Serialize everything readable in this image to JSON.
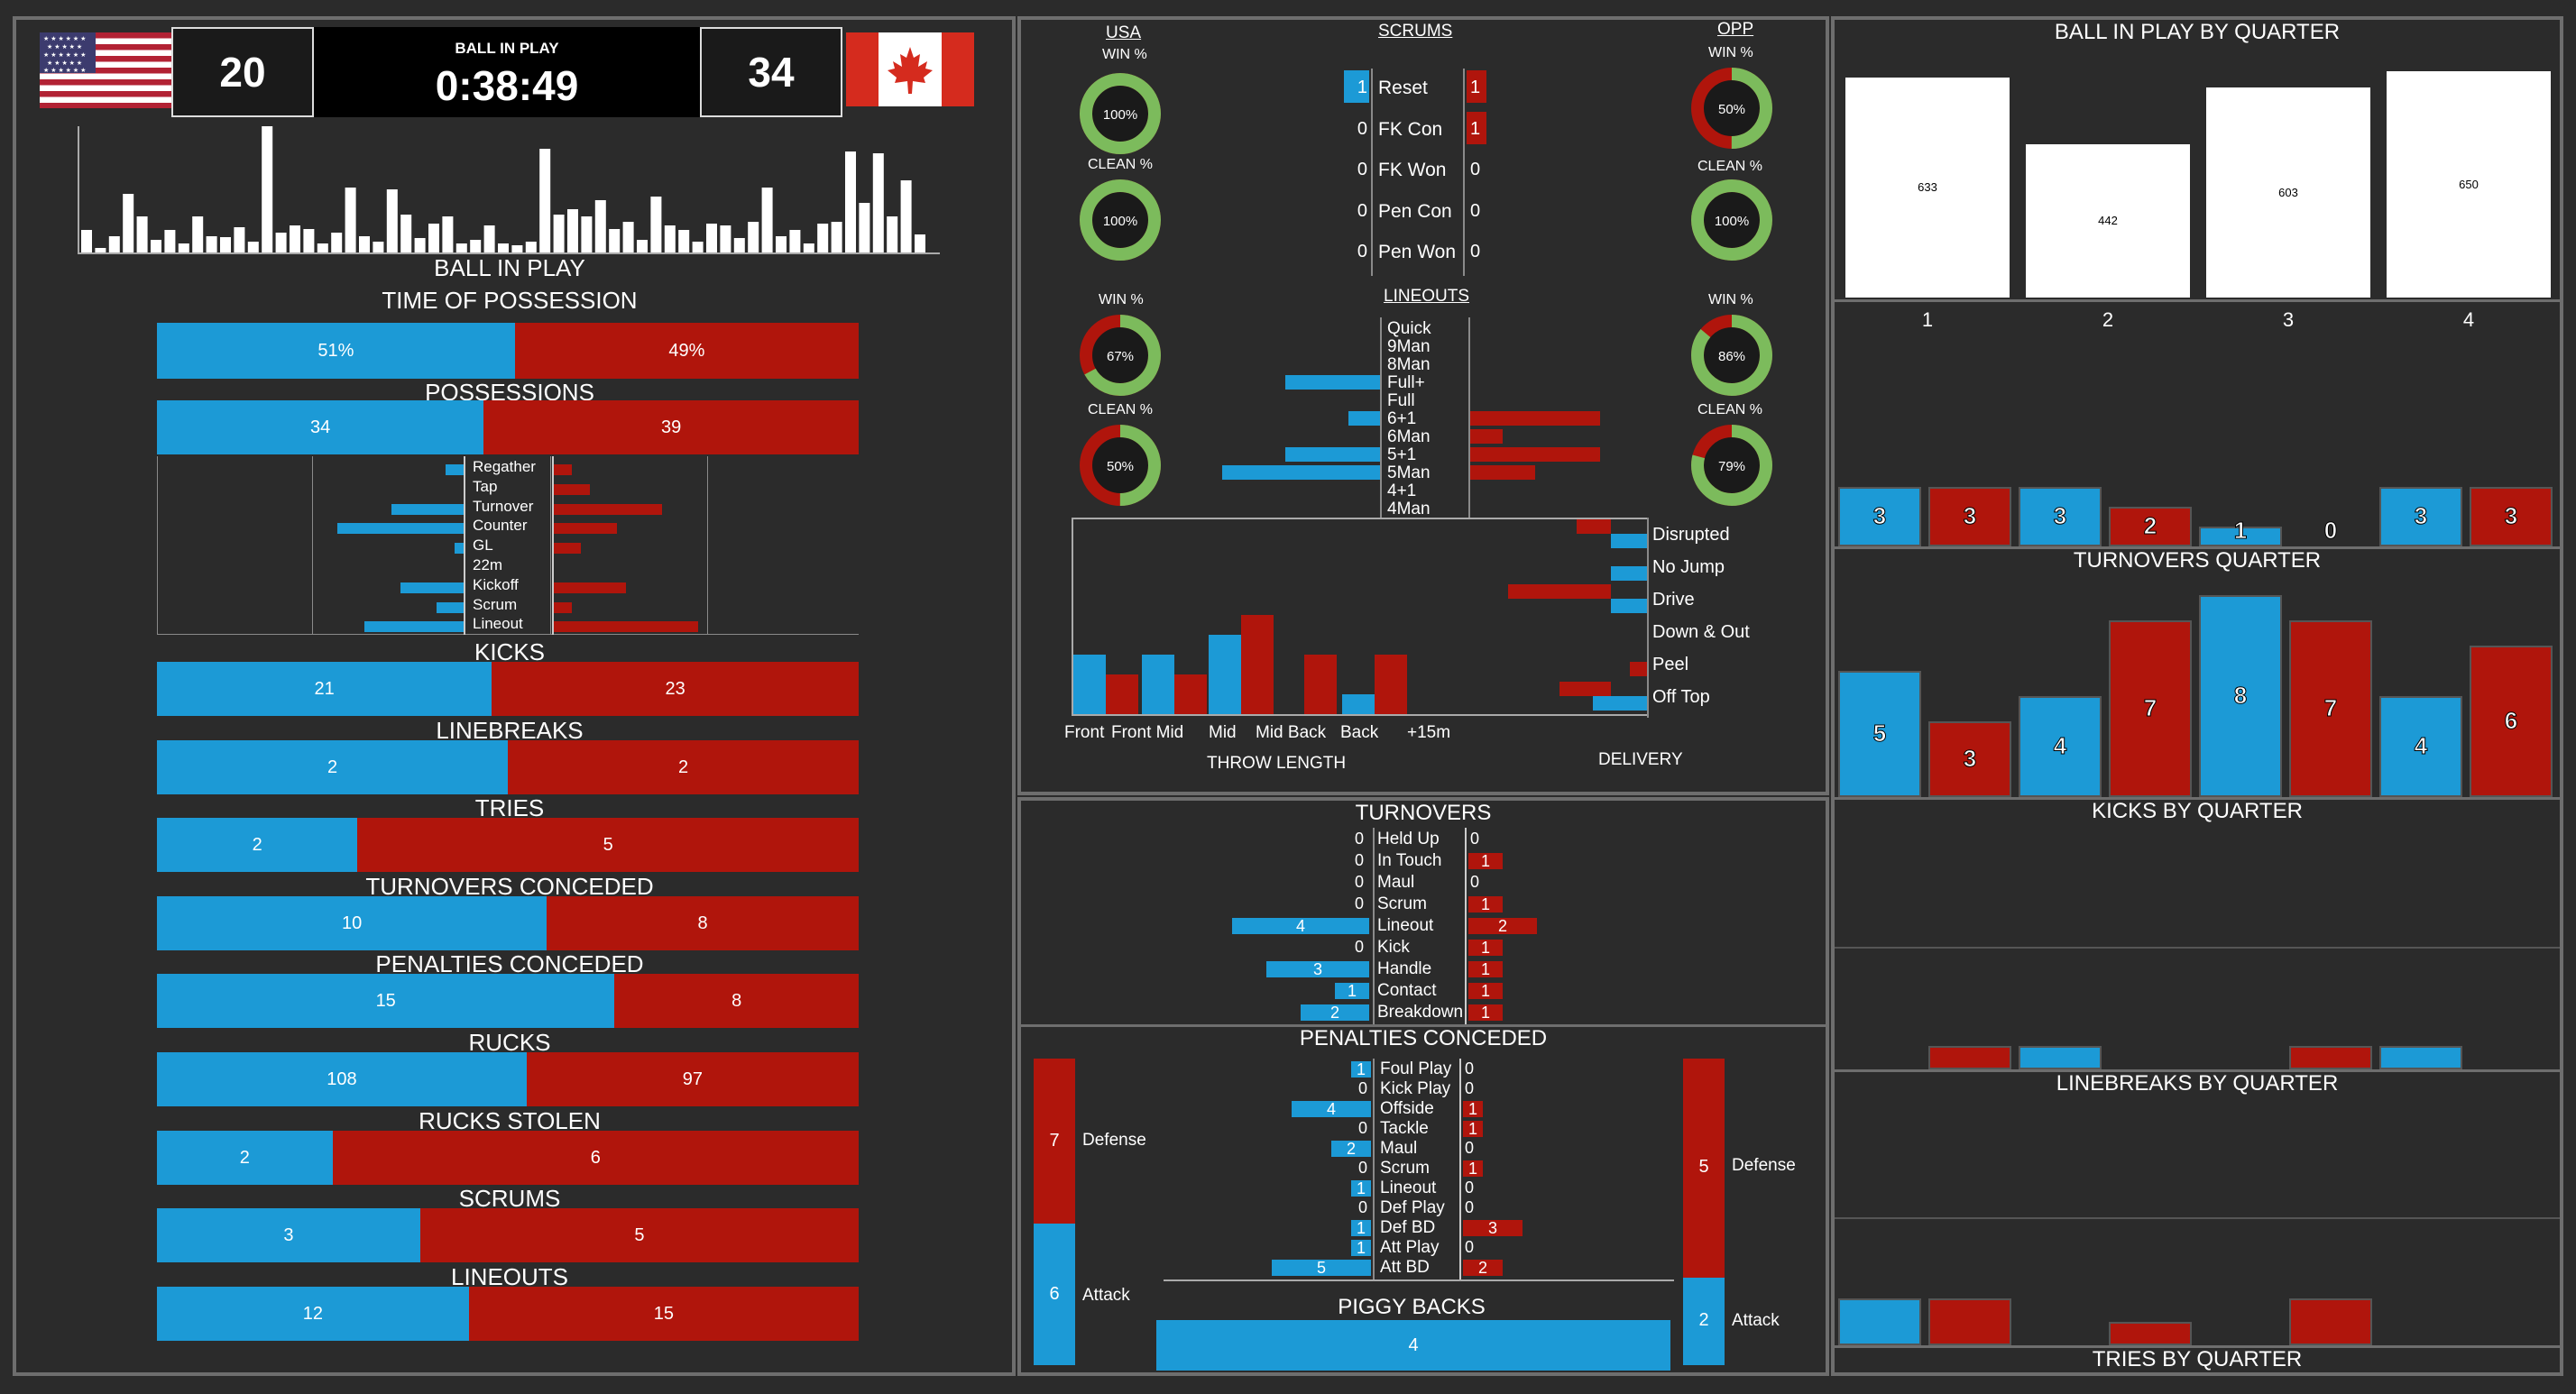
{
  "scoreboard": {
    "home_score": "20",
    "away_score": "34",
    "clock_label": "BALL IN PLAY",
    "clock": "0:38:49",
    "home_team": "USA",
    "away_team": "OPP"
  },
  "left": {
    "ball_in_play_label": "BALL IN PLAY",
    "ball_in_play_bars": [
      25,
      5,
      18,
      65,
      40,
      14,
      25,
      10,
      40,
      18,
      17,
      28,
      12,
      140,
      22,
      30,
      26,
      10,
      22,
      72,
      18,
      12,
      70,
      42,
      16,
      32,
      40,
      10,
      14,
      30,
      10,
      8,
      12,
      115,
      42,
      48,
      40,
      58,
      26,
      34,
      14,
      62,
      30,
      25,
      12,
      32,
      30,
      16,
      34,
      72,
      18,
      25,
      10,
      32,
      34,
      112,
      55,
      110,
      40,
      80,
      20
    ],
    "time_of_possession": {
      "label": "TIME OF POSSESSION",
      "home": "51%",
      "away": "49%",
      "home_val": 51,
      "away_val": 49
    },
    "possessions": {
      "label": "POSSESSIONS",
      "home": "34",
      "away": "39",
      "home_val": 34,
      "away_val": 39
    },
    "possession_types": [
      {
        "label": "Regather",
        "home": 2,
        "away": 2
      },
      {
        "label": "Tap",
        "home": 0,
        "away": 4
      },
      {
        "label": "Turnover",
        "home": 8,
        "away": 12
      },
      {
        "label": "Counter",
        "home": 14,
        "away": 7
      },
      {
        "label": "GL",
        "home": 1,
        "away": 3
      },
      {
        "label": "22m",
        "home": 0,
        "away": 0
      },
      {
        "label": "Kickoff",
        "home": 7,
        "away": 8
      },
      {
        "label": "Scrum",
        "home": 3,
        "away": 2
      },
      {
        "label": "Lineout",
        "home": 11,
        "away": 16
      }
    ],
    "stats": [
      {
        "key": "kicks",
        "label": "KICKS",
        "home": "21",
        "away": "23",
        "home_val": 21,
        "away_val": 23
      },
      {
        "key": "linebreaks",
        "label": "LINEBREAKS",
        "home": "2",
        "away": "2",
        "home_val": 2,
        "away_val": 2
      },
      {
        "key": "tries",
        "label": "TRIES",
        "home": "2",
        "away": "5",
        "home_val": 2,
        "away_val": 5
      },
      {
        "key": "turnovers-conceded",
        "label": "TURNOVERS CONCEDED",
        "home": "10",
        "away": "8",
        "home_val": 10,
        "away_val": 8
      },
      {
        "key": "penalties-conceded",
        "label": "PENALTIES CONCEDED",
        "home": "15",
        "away": "8",
        "home_val": 15,
        "away_val": 8
      },
      {
        "key": "rucks",
        "label": "RUCKS",
        "home": "108",
        "away": "97",
        "home_val": 108,
        "away_val": 97
      },
      {
        "key": "rucks-stolen",
        "label": "RUCKS STOLEN",
        "home": "2",
        "away": "6",
        "home_val": 2,
        "away_val": 6
      },
      {
        "key": "scrums",
        "label": "SCRUMS",
        "home": "3",
        "away": "5",
        "home_val": 3,
        "away_val": 5
      },
      {
        "key": "lineouts",
        "label": "LINEOUTS",
        "home": "12",
        "away": "15",
        "home_val": 12,
        "away_val": 15
      }
    ]
  },
  "set_piece": {
    "usa_label": "USA",
    "opp_label": "OPP",
    "scrums_label": "SCRUMS",
    "lineouts_label": "LINEOUTS",
    "win_pct_label": "WIN %",
    "clean_pct_label": "CLEAN %",
    "scrum_usa_win": {
      "text": "100%",
      "value": 100
    },
    "scrum_usa_clean": {
      "text": "100%",
      "value": 100
    },
    "scrum_opp_win": {
      "text": "50%",
      "value": 50
    },
    "scrum_opp_clean": {
      "text": "100%",
      "value": 100
    },
    "lineout_usa_win": {
      "text": "67%",
      "value": 67
    },
    "lineout_usa_clean": {
      "text": "50%",
      "value": 50
    },
    "lineout_opp_win": {
      "text": "86%",
      "value": 86
    },
    "lineout_opp_clean": {
      "text": "79%",
      "value": 79
    },
    "scrum_rows": [
      {
        "label": "Reset",
        "home": "1",
        "away": "1"
      },
      {
        "label": "FK Con",
        "home": "0",
        "away": "1"
      },
      {
        "label": "FK Won",
        "home": "0",
        "away": "0"
      },
      {
        "label": "Pen Con",
        "home": "0",
        "away": "0"
      },
      {
        "label": "Pen Won",
        "home": "0",
        "away": "0"
      }
    ],
    "lineout_types": [
      {
        "label": "Quick",
        "home": 0,
        "away": 0
      },
      {
        "label": "9Man",
        "home": 0,
        "away": 0
      },
      {
        "label": "8Man",
        "home": 0,
        "away": 0
      },
      {
        "label": "Full+",
        "home": 3,
        "away": 0
      },
      {
        "label": "Full",
        "home": 0,
        "away": 0
      },
      {
        "label": "6+1",
        "home": 1,
        "away": 4
      },
      {
        "label": "6Man",
        "home": 0,
        "away": 1
      },
      {
        "label": "5+1",
        "home": 3,
        "away": 4
      },
      {
        "label": "5Man",
        "home": 5,
        "away": 2
      },
      {
        "label": "4+1",
        "home": 0,
        "away": 0
      },
      {
        "label": "4Man",
        "home": 0,
        "away": 0
      }
    ],
    "throw_length_label": "THROW LENGTH",
    "throw_length": [
      {
        "label": "Front",
        "home": 3,
        "away": 2
      },
      {
        "label": "Front Mid",
        "home": 3,
        "away": 2
      },
      {
        "label": "Mid",
        "home": 4,
        "away": 5
      },
      {
        "label": "Mid Back",
        "home": 0,
        "away": 3
      },
      {
        "label": "Back",
        "home": 1,
        "away": 3
      },
      {
        "label": "+15m",
        "home": 0,
        "away": 0
      }
    ],
    "delivery_label": "DELIVERY",
    "delivery": [
      {
        "label": "Disrupted",
        "home": 1,
        "away": 1
      },
      {
        "label": "No Jump",
        "home": 1,
        "away": 0
      },
      {
        "label": "Drive",
        "home": 1,
        "away": 3
      },
      {
        "label": "Down & Out",
        "home": 0,
        "away": 0
      },
      {
        "label": "Peel",
        "home": 0,
        "away": 0.5
      },
      {
        "label": "Off Top",
        "home": 1.5,
        "away": 1.5
      }
    ]
  },
  "turnovers": {
    "label": "TURNOVERS",
    "rows": [
      {
        "label": "Held Up",
        "home": "0",
        "away": "0",
        "hv": 0,
        "av": 0
      },
      {
        "label": "In Touch",
        "home": "0",
        "away": "1",
        "hv": 0,
        "av": 1
      },
      {
        "label": "Maul",
        "home": "0",
        "away": "0",
        "hv": 0,
        "av": 0
      },
      {
        "label": "Scrum",
        "home": "0",
        "away": "1",
        "hv": 0,
        "av": 1
      },
      {
        "label": "Lineout",
        "home": "4",
        "away": "2",
        "hv": 4,
        "av": 2
      },
      {
        "label": "Kick",
        "home": "0",
        "away": "1",
        "hv": 0,
        "av": 1
      },
      {
        "label": "Handle",
        "home": "3",
        "away": "1",
        "hv": 3,
        "av": 1
      },
      {
        "label": "Contact",
        "home": "1",
        "away": "1",
        "hv": 1,
        "av": 1
      },
      {
        "label": "Breakdown",
        "home": "2",
        "away": "1",
        "hv": 2,
        "av": 1
      }
    ]
  },
  "penalties": {
    "label": "PENALTIES CONCEDED",
    "home_defense": {
      "label": "Defense",
      "value": "7",
      "val": 7
    },
    "home_attack": {
      "label": "Attack",
      "value": "6",
      "val": 6
    },
    "away_defense": {
      "label": "Defense",
      "value": "5",
      "val": 5
    },
    "away_attack": {
      "label": "Attack",
      "value": "2",
      "val": 2
    },
    "rows": [
      {
        "label": "Foul Play",
        "home": "1",
        "away": "0",
        "hv": 1,
        "av": 0
      },
      {
        "label": "Kick Play",
        "home": "0",
        "away": "0",
        "hv": 0,
        "av": 0
      },
      {
        "label": "Offside",
        "home": "4",
        "away": "1",
        "hv": 4,
        "av": 1
      },
      {
        "label": "Tackle",
        "home": "0",
        "away": "1",
        "hv": 0,
        "av": 1
      },
      {
        "label": "Maul",
        "home": "2",
        "away": "0",
        "hv": 2,
        "av": 0
      },
      {
        "label": "Scrum",
        "home": "0",
        "away": "1",
        "hv": 0,
        "av": 1
      },
      {
        "label": "Lineout",
        "home": "1",
        "away": "0",
        "hv": 1,
        "av": 0
      },
      {
        "label": "Def Play",
        "home": "0",
        "away": "0",
        "hv": 0,
        "av": 0
      },
      {
        "label": "Def BD",
        "home": "1",
        "away": "3",
        "hv": 1,
        "av": 3
      },
      {
        "label": "Att Play",
        "home": "1",
        "away": "0",
        "hv": 1,
        "av": 0
      },
      {
        "label": "Att BD",
        "home": "5",
        "away": "2",
        "hv": 5,
        "av": 2
      }
    ],
    "piggy_backs_label": "PIGGY BACKS",
    "piggy_backs": "4"
  },
  "quarters": {
    "ball_in_play_title": "BALL IN PLAY BY QUARTER",
    "ball_in_play": [
      {
        "q": "1",
        "value": "633",
        "val": 633
      },
      {
        "q": "2",
        "value": "442",
        "val": 442
      },
      {
        "q": "3",
        "value": "603",
        "val": 603
      },
      {
        "q": "4",
        "value": "650",
        "val": 650
      }
    ],
    "turnovers_title": "TURNOVERS QUARTER",
    "turnovers": [
      {
        "home": "3",
        "away": "3",
        "hv": 3,
        "av": 3
      },
      {
        "home": "3",
        "away": "2",
        "hv": 3,
        "av": 2
      },
      {
        "home": "1",
        "away": "0",
        "hv": 1,
        "av": 0
      },
      {
        "home": "3",
        "away": "3",
        "hv": 3,
        "av": 3
      }
    ],
    "kicks_title": "KICKS BY QUARTER",
    "kicks": [
      {
        "home": "5",
        "away": "3",
        "hv": 5,
        "av": 3
      },
      {
        "home": "4",
        "away": "7",
        "hv": 4,
        "av": 7
      },
      {
        "home": "8",
        "away": "7",
        "hv": 8,
        "av": 7
      },
      {
        "home": "4",
        "away": "6",
        "hv": 4,
        "av": 6
      }
    ],
    "linebreaks_title": "LINEBREAKS BY QUARTER",
    "linebreaks": [
      {
        "hv": 0,
        "av": 1
      },
      {
        "hv": 1,
        "av": 0
      },
      {
        "hv": 0,
        "av": 1
      },
      {
        "hv": 1,
        "av": 0
      }
    ],
    "tries_title": "TRIES BY QUARTER",
    "tries": [
      {
        "hv": 1,
        "av": 1
      },
      {
        "hv": 0,
        "av": 0.5
      },
      {
        "hv": 0,
        "av": 1
      },
      {
        "hv": 0,
        "av": 0
      }
    ]
  },
  "colors": {
    "home": "#1c9ad6",
    "away": "#b0150c",
    "ring_green": "#7cbb5c",
    "ring_yellow": "#e3c22a"
  }
}
